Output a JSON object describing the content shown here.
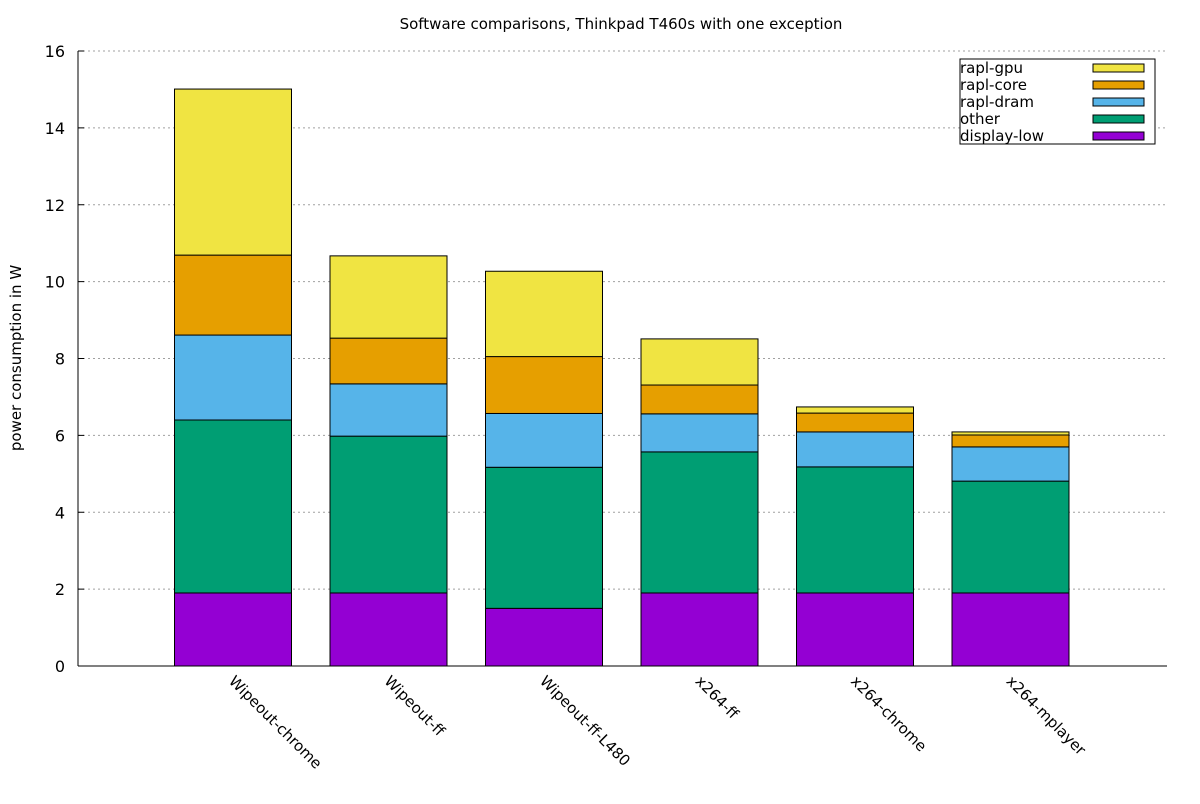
{
  "chart_data": {
    "type": "bar",
    "stacked": true,
    "title": "Software comparisons, Thinkpad T460s with one exception",
    "xlabel": "",
    "ylabel": "power consumption in W",
    "ylim": [
      0,
      16
    ],
    "yticks": [
      0,
      2,
      4,
      6,
      8,
      10,
      12,
      14,
      16
    ],
    "ytick_labels": [
      "0",
      "2",
      "4",
      "6",
      "8",
      "10",
      "12",
      "14",
      "16"
    ],
    "grid": "horizontal dotted",
    "legend_position": "top-right",
    "categories": [
      "Wipeout-chrome",
      "Wipeout-ff",
      "Wipeout-ff-L480",
      "x264-ff",
      "x264-chrome",
      "x264-mplayer"
    ],
    "series": [
      {
        "name": "display-low",
        "color": "#9400d3",
        "values": [
          1.9,
          1.9,
          1.5,
          1.9,
          1.9,
          1.9
        ]
      },
      {
        "name": "other",
        "color": "#009e73",
        "values": [
          4.5,
          4.08,
          3.67,
          3.67,
          3.28,
          2.91
        ]
      },
      {
        "name": "rapl-dram",
        "color": "#56b4e9",
        "values": [
          2.21,
          1.36,
          1.4,
          0.99,
          0.91,
          0.89
        ]
      },
      {
        "name": "rapl-core",
        "color": "#e69f00",
        "values": [
          2.08,
          1.19,
          1.48,
          0.75,
          0.49,
          0.31
        ]
      },
      {
        "name": "rapl-gpu",
        "color": "#f0e442",
        "values": [
          4.32,
          2.14,
          2.22,
          1.2,
          0.16,
          0.08
        ]
      }
    ],
    "legend_order": [
      "rapl-gpu",
      "rapl-core",
      "rapl-dram",
      "other",
      "display-low"
    ]
  }
}
